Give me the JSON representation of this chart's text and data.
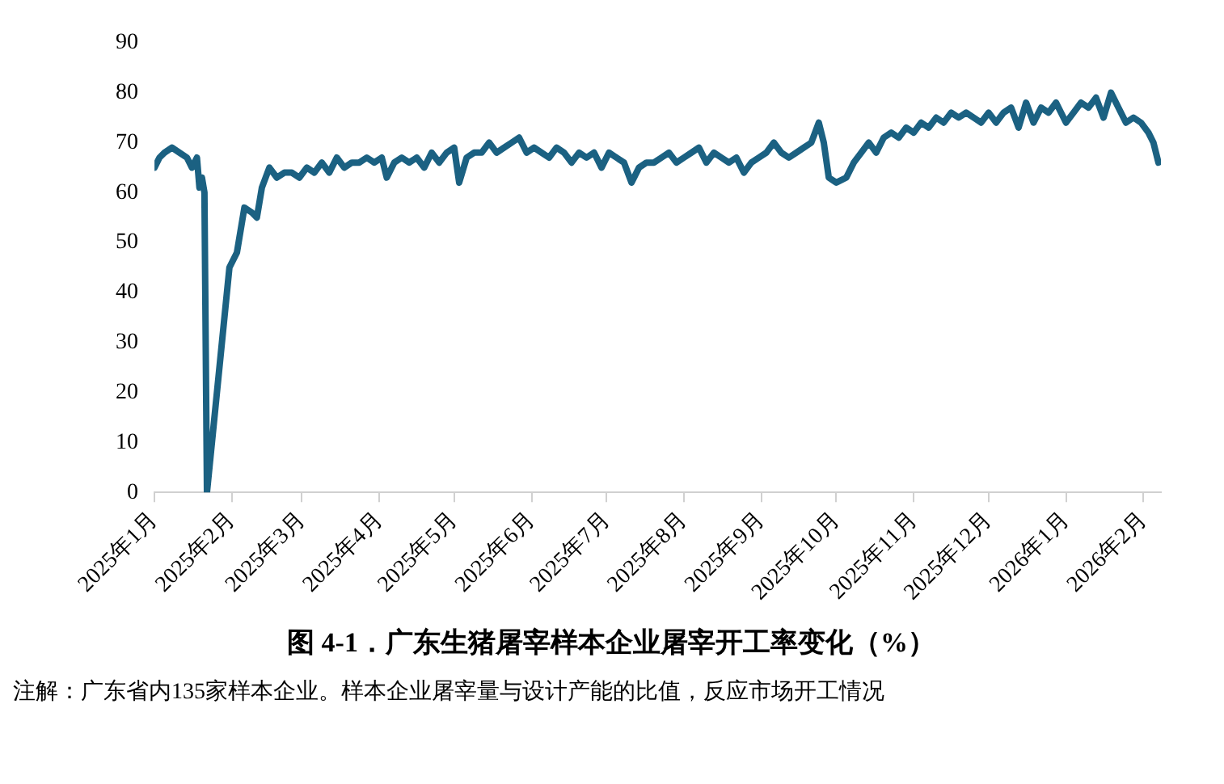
{
  "chart_data": {
    "type": "line",
    "title": "图 4-1．广东生猪屠宰样本企业屠宰开工率变化（%）",
    "annotations": [
      "注解：广东省内135家样本企业。样本企业屠宰量与设计产能的比值，反应市场开工情况"
    ],
    "x": [
      "2025-01-01",
      "2025-01-03",
      "2025-01-05",
      "2025-01-08",
      "2025-01-11",
      "2025-01-14",
      "2025-01-16",
      "2025-01-18",
      "2025-01-19",
      "2025-01-20",
      "2025-01-21",
      "2025-01-22",
      "2025-01-25",
      "2025-01-28",
      "2025-01-31",
      "2025-02-03",
      "2025-02-06",
      "2025-02-09",
      "2025-02-11",
      "2025-02-13",
      "2025-02-16",
      "2025-02-19",
      "2025-02-22",
      "2025-02-25",
      "2025-02-28",
      "2025-03-03",
      "2025-03-06",
      "2025-03-09",
      "2025-03-12",
      "2025-03-15",
      "2025-03-18",
      "2025-03-21",
      "2025-03-24",
      "2025-03-27",
      "2025-03-30",
      "2025-04-02",
      "2025-04-04",
      "2025-04-07",
      "2025-04-10",
      "2025-04-13",
      "2025-04-16",
      "2025-04-19",
      "2025-04-22",
      "2025-04-25",
      "2025-04-28",
      "2025-05-01",
      "2025-05-03",
      "2025-05-06",
      "2025-05-09",
      "2025-05-12",
      "2025-05-15",
      "2025-05-18",
      "2025-05-21",
      "2025-05-24",
      "2025-05-27",
      "2025-05-30",
      "2025-06-02",
      "2025-06-05",
      "2025-06-08",
      "2025-06-11",
      "2025-06-14",
      "2025-06-17",
      "2025-06-20",
      "2025-06-23",
      "2025-06-26",
      "2025-06-29",
      "2025-07-02",
      "2025-07-05",
      "2025-07-08",
      "2025-07-11",
      "2025-07-14",
      "2025-07-17",
      "2025-07-20",
      "2025-07-23",
      "2025-07-26",
      "2025-07-29",
      "2025-08-01",
      "2025-08-04",
      "2025-08-07",
      "2025-08-10",
      "2025-08-13",
      "2025-08-16",
      "2025-08-19",
      "2025-08-22",
      "2025-08-25",
      "2025-08-28",
      "2025-08-31",
      "2025-09-03",
      "2025-09-06",
      "2025-09-09",
      "2025-09-12",
      "2025-09-15",
      "2025-09-18",
      "2025-09-21",
      "2025-09-24",
      "2025-09-26",
      "2025-09-28",
      "2025-10-01",
      "2025-10-05",
      "2025-10-08",
      "2025-10-11",
      "2025-10-14",
      "2025-10-17",
      "2025-10-20",
      "2025-10-23",
      "2025-10-26",
      "2025-10-29",
      "2025-11-01",
      "2025-11-04",
      "2025-11-07",
      "2025-11-10",
      "2025-11-13",
      "2025-11-16",
      "2025-11-19",
      "2025-11-22",
      "2025-11-25",
      "2025-11-28",
      "2025-12-01",
      "2025-12-04",
      "2025-12-07",
      "2025-12-10",
      "2025-12-13",
      "2025-12-16",
      "2025-12-19",
      "2025-12-22",
      "2025-12-25",
      "2025-12-28",
      "2026-01-01",
      "2026-01-04",
      "2026-01-07",
      "2026-01-10",
      "2026-01-13",
      "2026-01-16",
      "2026-01-19",
      "2026-01-22",
      "2026-01-25",
      "2026-01-28",
      "2026-01-31",
      "2026-02-03",
      "2026-02-05",
      "2026-02-07"
    ],
    "series": [
      {
        "color": "#1b6182",
        "values": [
          65,
          67,
          68,
          69,
          68,
          67,
          65,
          67,
          61,
          63,
          60,
          0,
          15,
          30,
          45,
          48,
          57,
          56,
          55,
          61,
          65,
          63,
          64,
          64,
          63,
          65,
          64,
          66,
          64,
          67,
          65,
          66,
          66,
          67,
          66,
          67,
          63,
          66,
          67,
          66,
          67,
          65,
          68,
          66,
          68,
          69,
          62,
          67,
          68,
          68,
          70,
          68,
          69,
          70,
          71,
          68,
          69,
          68,
          67,
          69,
          68,
          66,
          68,
          67,
          68,
          65,
          68,
          67,
          66,
          62,
          65,
          66,
          66,
          67,
          68,
          66,
          67,
          68,
          69,
          66,
          68,
          67,
          66,
          67,
          64,
          66,
          67,
          68,
          70,
          68,
          67,
          68,
          69,
          70,
          74,
          70,
          63,
          62,
          63,
          66,
          68,
          70,
          68,
          71,
          72,
          71,
          73,
          72,
          74,
          73,
          75,
          74,
          76,
          75,
          76,
          75,
          74,
          76,
          74,
          76,
          77,
          73,
          78,
          74,
          77,
          76,
          78,
          74,
          76,
          78,
          77,
          79,
          75,
          80,
          77,
          74,
          75,
          74,
          72,
          70,
          66
        ]
      }
    ],
    "xlim": [
      "2025-01-01",
      "2026-02-08"
    ],
    "xticks": [
      {
        "value": "2025-01-01",
        "label": "2025年1月"
      },
      {
        "value": "2025-02-01",
        "label": "2025年2月"
      },
      {
        "value": "2025-03-01",
        "label": "2025年3月"
      },
      {
        "value": "2025-04-01",
        "label": "2025年4月"
      },
      {
        "value": "2025-05-01",
        "label": "2025年5月"
      },
      {
        "value": "2025-06-01",
        "label": "2025年6月"
      },
      {
        "value": "2025-07-01",
        "label": "2025年7月"
      },
      {
        "value": "2025-08-01",
        "label": "2025年8月"
      },
      {
        "value": "2025-09-01",
        "label": "2025年9月"
      },
      {
        "value": "2025-10-01",
        "label": "2025年10月"
      },
      {
        "value": "2025-11-01",
        "label": "2025年11月"
      },
      {
        "value": "2025-12-01",
        "label": "2025年12月"
      },
      {
        "value": "2026-01-01",
        "label": "2026年1月"
      },
      {
        "value": "2026-02-01",
        "label": "2026年2月"
      }
    ],
    "ylim": [
      0,
      90
    ],
    "yticks": [
      0,
      10,
      20,
      30,
      40,
      50,
      60,
      70,
      80,
      90
    ],
    "grid": false,
    "legend": false,
    "marker": "none",
    "line_style": "solid"
  }
}
